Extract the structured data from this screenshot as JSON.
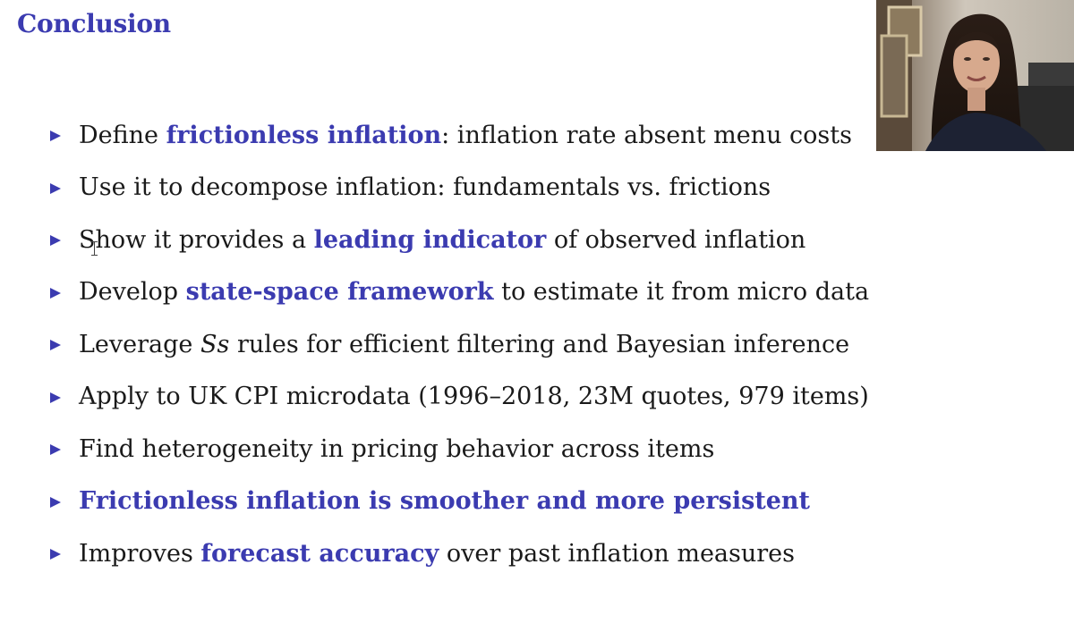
{
  "slide": {
    "title": "Conclusion",
    "accent_color": "#3b3bb0",
    "bullet_icon": "triangle-right-icon",
    "bullets": [
      {
        "segments": [
          {
            "text": "Define ",
            "style": "plain"
          },
          {
            "text": "frictionless inflation",
            "style": "hl"
          },
          {
            "text": ": inflation rate absent menu costs",
            "style": "plain"
          }
        ]
      },
      {
        "segments": [
          {
            "text": "Use it to decompose inflation: fundamentals vs. frictions",
            "style": "plain"
          }
        ]
      },
      {
        "segments": [
          {
            "text": "Show it provides a ",
            "style": "plain"
          },
          {
            "text": "leading indicator",
            "style": "hl"
          },
          {
            "text": " of observed inflation",
            "style": "plain"
          }
        ]
      },
      {
        "segments": [
          {
            "text": "Develop ",
            "style": "plain"
          },
          {
            "text": "state-space framework",
            "style": "hl"
          },
          {
            "text": " to estimate it from micro data",
            "style": "plain"
          }
        ]
      },
      {
        "segments": [
          {
            "text": "Leverage ",
            "style": "plain"
          },
          {
            "text": "Ss",
            "style": "it"
          },
          {
            "text": " rules for efficient filtering and Bayesian inference",
            "style": "plain"
          }
        ]
      },
      {
        "segments": [
          {
            "text": "Apply to UK CPI microdata (1996–2018, 23M quotes, 979 items)",
            "style": "plain"
          }
        ]
      },
      {
        "segments": [
          {
            "text": "Find heterogeneity in pricing behavior across items",
            "style": "plain"
          }
        ]
      },
      {
        "segments": [
          {
            "text": "Frictionless inflation is smoother and more persistent",
            "style": "hl"
          }
        ]
      },
      {
        "segments": [
          {
            "text": "Improves ",
            "style": "plain"
          },
          {
            "text": "forecast accuracy",
            "style": "hl"
          },
          {
            "text": " over past inflation measures",
            "style": "plain"
          }
        ]
      }
    ]
  },
  "webcam": {
    "subject": "presenter-video"
  }
}
